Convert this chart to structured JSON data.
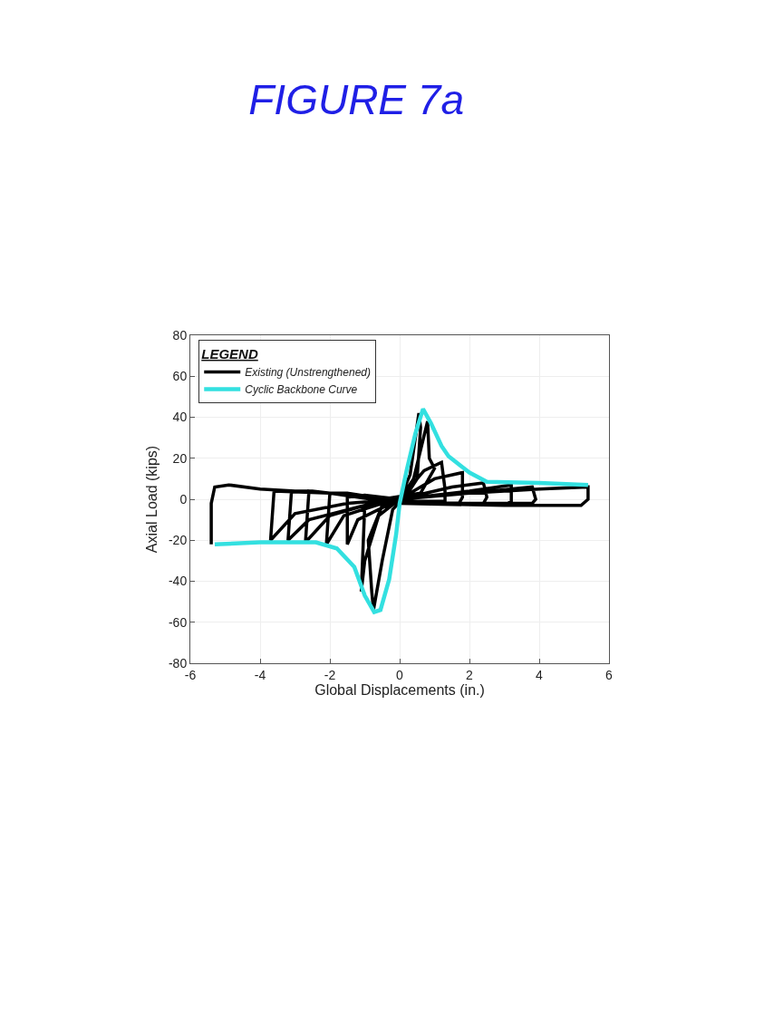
{
  "chart_data": {
    "type": "line",
    "title": "FIGURE 7a",
    "xlabel": "Global Displacements (in.)",
    "ylabel": "Axial Load (kips)",
    "legend_title": "LEGEND",
    "legend": "top left",
    "grid": true,
    "marker": "none",
    "line_style": "solid",
    "xlim": [
      -6,
      6
    ],
    "xticks": [
      -6,
      -4,
      -2,
      0,
      2,
      4,
      6
    ],
    "ylim": [
      -80,
      80
    ],
    "yticks": [
      -80,
      -60,
      -40,
      -20,
      0,
      20,
      40,
      60,
      80
    ],
    "series": [
      {
        "name": "Existing (Unstrengthened)",
        "color": "#000000",
        "x": [
          0,
          0.3,
          0.55,
          0.6,
          0.5,
          0.2,
          -0.2,
          -0.5,
          -0.75,
          -0.8,
          -0.9,
          -0.5,
          0,
          0.4,
          0.8,
          0.85,
          1.0,
          0.6,
          -0.5,
          -1.0,
          -1.1,
          -1.0,
          -0.6,
          0,
          0.7,
          1.2,
          1.3,
          1.3,
          0.5,
          -1.0,
          -1.5,
          -1.5,
          -1.2,
          0,
          1.0,
          1.8,
          1.8,
          1.7,
          0,
          -1.5,
          -2.0,
          -2.1,
          -1.6,
          -0.5,
          0.5,
          1.5,
          2.4,
          2.5,
          2.4,
          0,
          -2.0,
          -2.6,
          -2.7,
          -2.0,
          -1,
          0,
          2,
          3.2,
          3.2,
          3.1,
          1,
          -1,
          -2.5,
          -3.1,
          -3.2,
          -2.6,
          -1,
          0,
          2,
          3.8,
          3.9,
          3.8,
          1,
          -2,
          -3.6,
          -3.7,
          -3,
          -1.5,
          0,
          2,
          4,
          5.4,
          5.4,
          5.2,
          3,
          0,
          -2,
          -4,
          -4.9,
          -5.3,
          -5.4,
          -5.4
        ],
        "values": [
          0,
          12,
          42,
          35,
          10,
          2,
          -5,
          -30,
          -54,
          -45,
          -20,
          -3,
          0,
          10,
          38,
          20,
          15,
          3,
          0,
          -3,
          -45,
          -30,
          -8,
          0,
          14,
          18,
          5,
          -1,
          -1,
          2,
          1,
          -22,
          -10,
          0,
          10,
          13,
          1,
          -2,
          -1,
          3,
          3,
          -22,
          -8,
          -2,
          2,
          6,
          8,
          1,
          -2,
          -1.5,
          3,
          4,
          -21,
          -8,
          -3,
          0,
          4,
          7,
          -1,
          -2,
          -2,
          1,
          4,
          4,
          -20,
          -10,
          -3,
          0,
          3,
          6,
          0,
          -2,
          -2,
          3,
          4,
          -20,
          -7,
          -2,
          0,
          3,
          5,
          6,
          0,
          -3,
          -3,
          -2,
          3,
          5,
          7,
          6,
          -2,
          -22
        ]
      },
      {
        "name": "Cyclic Backbone Curve",
        "color": "#33e0e0",
        "x": [
          -5.3,
          -4,
          -2.4,
          -1.8,
          -1.3,
          -1.0,
          -0.73,
          -0.55,
          -0.3,
          -0.1,
          0,
          0.2,
          0.45,
          0.67,
          0.9,
          1.2,
          1.4,
          2.0,
          2.5,
          4,
          5.4
        ],
        "values": [
          -22,
          -21,
          -21,
          -24,
          -33,
          -47,
          -55,
          -54,
          -39,
          -17,
          -2,
          14,
          32,
          44,
          37,
          26,
          21,
          13,
          8.5,
          8,
          7
        ]
      }
    ]
  }
}
